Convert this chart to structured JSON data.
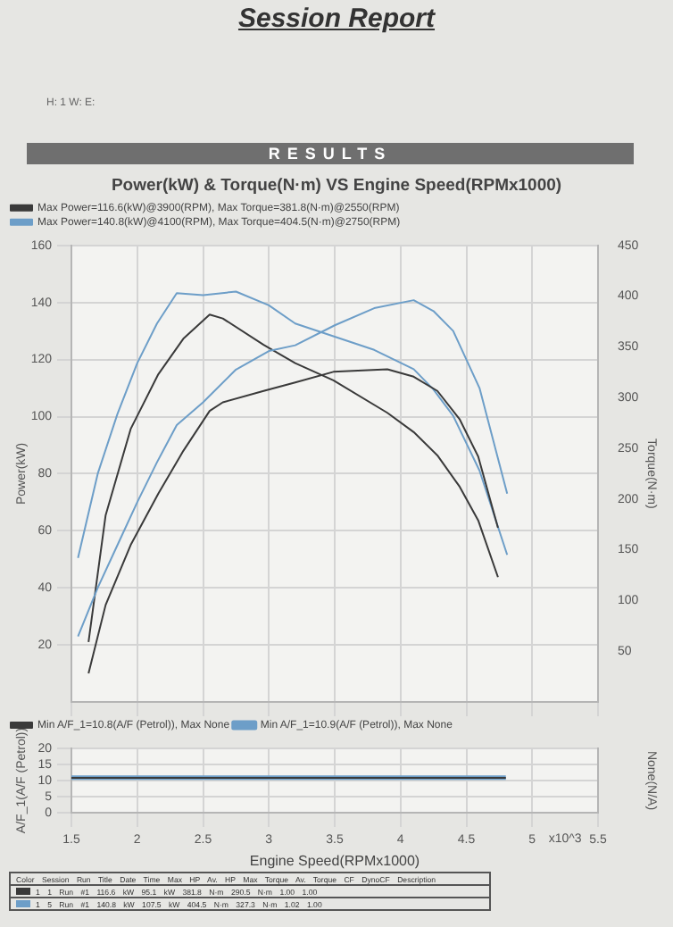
{
  "chart_data": [
    {
      "type": "line",
      "title": "Power(kW) & Torque(N·m) VS Engine Speed(RPMx1000)",
      "ylabel": "Power(kW)",
      "y2label": "Torque(N·m)",
      "annotations": [
        "Session Report",
        "H:  1   W:      E:",
        "RESULTS"
      ],
      "xlim": [
        1.5,
        5.5
      ],
      "xticks": [
        1.5,
        2,
        2.5,
        3,
        3.5,
        4,
        4.5,
        5,
        5.5
      ],
      "ylim": [
        0,
        160
      ],
      "yticks": [
        20,
        40,
        60,
        80,
        100,
        120,
        140,
        160
      ],
      "y2lim": [
        0,
        450
      ],
      "y2ticks": [
        50,
        100,
        150,
        200,
        250,
        300,
        350,
        400,
        450
      ],
      "grid": true,
      "legend": "top left",
      "tick_labels": "y",
      "marker": "none",
      "line_style": "solid",
      "series": [
        {
          "name": "Max Power=116.6(kW)@3900(RPM), Max Torque=381.8(N·m)@2550(RPM)",
          "color": "#3a3a3a",
          "x": [
            1.63,
            1.76,
            1.95,
            2.16,
            2.35,
            2.55,
            2.65,
            2.96,
            3.2,
            3.49,
            3.9,
            4.1,
            4.28,
            4.45,
            4.59,
            4.74
          ],
          "values": [
            10,
            34,
            55,
            73,
            88,
            102,
            105,
            109,
            112,
            115.7,
            116.6,
            114,
            109,
            99,
            86,
            61
          ]
        },
        {
          "name": "Max Power=140.8(kW)@4100(RPM), Max Torque=404.5(N·m)@2750(RPM)",
          "color": "#6d9ec8",
          "x": [
            1.55,
            1.7,
            1.85,
            2.0,
            2.15,
            2.3,
            2.5,
            2.75,
            3.0,
            3.2,
            3.5,
            3.8,
            4.1,
            4.25,
            4.4,
            4.6,
            4.81
          ],
          "values": [
            23,
            40,
            55,
            70,
            84,
            97,
            105,
            116.5,
            123,
            125,
            132,
            138,
            140.8,
            137,
            130,
            110,
            73
          ]
        },
        {
          "color": "#3a3a3a",
          "axis": "y2",
          "x": [
            1.63,
            1.76,
            1.95,
            2.16,
            2.35,
            2.55,
            2.65,
            2.96,
            3.2,
            3.49,
            3.9,
            4.1,
            4.28,
            4.45,
            4.59,
            4.74
          ],
          "values": [
            59,
            184,
            269,
            323,
            358,
            381.8,
            378,
            352,
            334,
            317,
            285,
            266,
            243,
            212,
            179,
            123
          ]
        },
        {
          "color": "#6d9ec8",
          "axis": "y2",
          "x": [
            1.55,
            1.7,
            1.85,
            2.0,
            2.15,
            2.3,
            2.5,
            2.75,
            3.0,
            3.2,
            3.5,
            3.8,
            4.1,
            4.25,
            4.4,
            4.6,
            4.81
          ],
          "values": [
            142,
            225,
            284,
            334,
            373,
            403,
            401,
            404.5,
            391,
            373,
            360,
            347,
            328,
            308,
            282,
            228,
            145
          ]
        }
      ]
    },
    {
      "type": "line",
      "xlabel": "Engine Speed(RPMx1000)",
      "ylabel": "A/F_1(A/F (Petrol))",
      "y2label": "None(N/A)",
      "annotations": [
        "x10^3",
        "Color Session Run Title Date Time Max HP Av. HP Max Torque Av. Torque CF DynoCF Description",
        "1 1 Run #1 116.6 kW 95.1 kW 381.8 N·m 290.5 N·m 1.00 1.00",
        "1 5 Run #1 140.8 kW 107.5 kW 404.5 N·m 327.3 N·m 1.02 1.00"
      ],
      "xlim": [
        1.5,
        5.5
      ],
      "xticks": [
        1.5,
        2,
        2.5,
        3,
        3.5,
        4,
        4.5,
        5,
        5.5
      ],
      "ylim": [
        0,
        20
      ],
      "yticks": [
        0,
        5,
        10,
        15,
        20
      ],
      "grid": true,
      "legend": "top left",
      "marker": "none",
      "line_style": "solid",
      "series": [
        {
          "name": "Min A/F_1=10.8(A/F (Petrol)), Max None",
          "color": "#3a3a3a",
          "x": [
            1.5,
            4.8
          ],
          "values": [
            10.8,
            10.8
          ]
        },
        {
          "name": "Min A/F_1=10.9(A/F (Petrol)), Max None",
          "color": "#6d9ec8",
          "x": [
            1.5,
            4.8
          ],
          "values": [
            10.9,
            10.9
          ]
        }
      ]
    }
  ]
}
